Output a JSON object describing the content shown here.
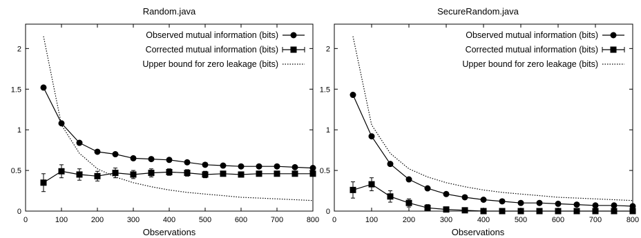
{
  "chart_data": [
    {
      "type": "line",
      "title": "Random.java",
      "xlabel": "Observations",
      "ylabel": "",
      "xlim": [
        0,
        800
      ],
      "ylim": [
        0,
        2.3
      ],
      "xticks": [
        "0",
        "100",
        "200",
        "300",
        "400",
        "500",
        "600",
        "700",
        "800"
      ],
      "yticks": [
        "0",
        "0.5",
        "1",
        "1.5",
        "2"
      ],
      "grid": false,
      "legend_position": "top-right",
      "x": [
        50,
        100,
        150,
        200,
        250,
        300,
        350,
        400,
        450,
        500,
        550,
        600,
        650,
        700,
        750,
        800
      ],
      "series": [
        {
          "name": "Observed mutual information (bits)",
          "marker": "circle",
          "values": [
            1.52,
            1.08,
            0.84,
            0.73,
            0.7,
            0.65,
            0.64,
            0.63,
            0.6,
            0.57,
            0.56,
            0.55,
            0.55,
            0.55,
            0.54,
            0.53
          ]
        },
        {
          "name": "Corrected mutual information (bits)",
          "marker": "square",
          "error_bars": true,
          "values": [
            0.35,
            0.49,
            0.45,
            0.43,
            0.47,
            0.45,
            0.47,
            0.48,
            0.47,
            0.45,
            0.46,
            0.45,
            0.46,
            0.46,
            0.46,
            0.46
          ],
          "errors": [
            0.11,
            0.08,
            0.07,
            0.06,
            0.06,
            0.05,
            0.05,
            0.04,
            0.04,
            0.04,
            0.03,
            0.03,
            0.03,
            0.03,
            0.03,
            0.03
          ]
        },
        {
          "name": "Upper bound for zero leakage (bits)",
          "style": "dotted",
          "values": [
            2.15,
            1.06,
            0.71,
            0.52,
            0.42,
            0.35,
            0.3,
            0.26,
            0.23,
            0.21,
            0.19,
            0.17,
            0.16,
            0.15,
            0.14,
            0.13
          ]
        }
      ]
    },
    {
      "type": "line",
      "title": "SecureRandom.java",
      "xlabel": "Observations",
      "ylabel": "",
      "xlim": [
        0,
        800
      ],
      "ylim": [
        0,
        2.3
      ],
      "xticks": [
        "0",
        "100",
        "200",
        "300",
        "400",
        "500",
        "600",
        "700",
        "800"
      ],
      "yticks": [
        "0",
        "0.5",
        "1",
        "1.5",
        "2"
      ],
      "grid": false,
      "legend_position": "top-right",
      "x": [
        50,
        100,
        150,
        200,
        250,
        300,
        350,
        400,
        450,
        500,
        550,
        600,
        650,
        700,
        750,
        800
      ],
      "series": [
        {
          "name": "Observed mutual information (bits)",
          "marker": "circle",
          "values": [
            1.43,
            0.92,
            0.58,
            0.39,
            0.28,
            0.21,
            0.17,
            0.14,
            0.12,
            0.1,
            0.1,
            0.09,
            0.08,
            0.07,
            0.07,
            0.06
          ]
        },
        {
          "name": "Corrected mutual information (bits)",
          "marker": "square",
          "error_bars": true,
          "values": [
            0.26,
            0.33,
            0.18,
            0.1,
            0.04,
            0.02,
            0.01,
            0.0,
            0.0,
            0.0,
            0.0,
            0.0,
            0.0,
            0.0,
            0.0,
            0.0
          ],
          "errors": [
            0.1,
            0.08,
            0.07,
            0.05,
            0.04,
            0.03,
            0.02,
            0.02,
            0.02,
            0.01,
            0.01,
            0.01,
            0.01,
            0.01,
            0.01,
            0.01
          ]
        },
        {
          "name": "Upper bound for zero leakage (bits)",
          "style": "dotted",
          "values": [
            2.15,
            1.06,
            0.71,
            0.52,
            0.42,
            0.35,
            0.3,
            0.26,
            0.23,
            0.21,
            0.19,
            0.17,
            0.16,
            0.15,
            0.14,
            0.13
          ]
        }
      ]
    }
  ]
}
